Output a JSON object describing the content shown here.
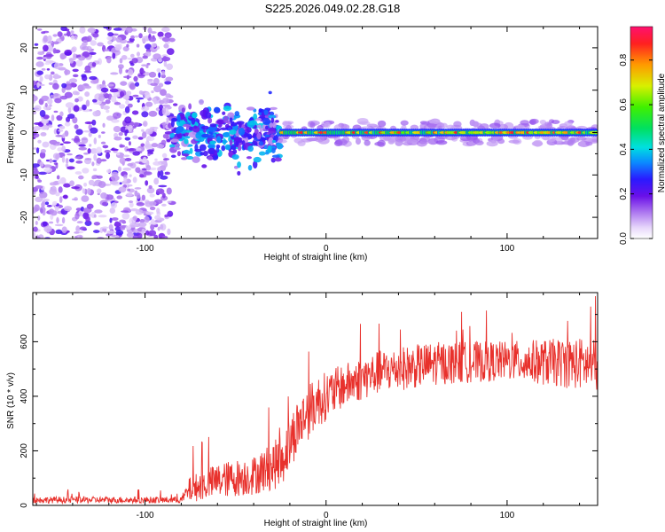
{
  "title": "S225.2026.049.02.28.G18",
  "chart_data": [
    {
      "type": "heatmap",
      "name": "spectrogram",
      "xlabel": "Height of straight line (km)",
      "ylabel": "Frequency (Hz)",
      "xlim": [
        -162,
        150
      ],
      "ylim": [
        -25,
        25
      ],
      "xticks": [
        -100,
        0,
        100
      ],
      "yticks": [
        -20,
        -10,
        0,
        10,
        20
      ],
      "colorbar": {
        "label": "Normalized spectral amplitude",
        "range": [
          0,
          0.95
        ],
        "ticks": [
          0,
          0.2,
          0.4,
          0.6,
          0.8
        ]
      },
      "regions": [
        {
          "x_range": [
            -162,
            -85
          ],
          "freq_spread": 25,
          "amplitude": 0.08,
          "description": "noise"
        },
        {
          "x_range": [
            -85,
            -25
          ],
          "freq_spread": 7,
          "amplitude": 0.2
        },
        {
          "x_range": [
            -25,
            150
          ],
          "freq_center": 0,
          "freq_spread": 1.5,
          "amplitude": 0.85
        }
      ]
    },
    {
      "type": "line",
      "name": "snr",
      "xlabel": "Height of straight line (km)",
      "ylabel": "SNR (10 * v/v)",
      "xlim": [
        -162,
        150
      ],
      "ylim": [
        0,
        780
      ],
      "xticks": [
        -100,
        0,
        100
      ],
      "yticks": [
        0,
        200,
        400,
        600
      ],
      "color": "#e8312c",
      "profile": [
        {
          "x": -162,
          "y": 20,
          "noise": 15
        },
        {
          "x": -80,
          "y": 20,
          "noise": 15
        },
        {
          "x": -75,
          "y": 60,
          "noise": 60
        },
        {
          "x": -60,
          "y": 90,
          "noise": 80
        },
        {
          "x": -40,
          "y": 110,
          "noise": 90
        },
        {
          "x": -25,
          "y": 160,
          "noise": 120
        },
        {
          "x": -15,
          "y": 300,
          "noise": 130
        },
        {
          "x": -5,
          "y": 380,
          "noise": 120
        },
        {
          "x": 10,
          "y": 440,
          "noise": 100
        },
        {
          "x": 30,
          "y": 490,
          "noise": 100
        },
        {
          "x": 60,
          "y": 520,
          "noise": 100
        },
        {
          "x": 100,
          "y": 530,
          "noise": 90
        },
        {
          "x": 140,
          "y": 520,
          "noise": 120
        },
        {
          "x": 150,
          "y": 510,
          "noise": 120
        }
      ]
    }
  ]
}
